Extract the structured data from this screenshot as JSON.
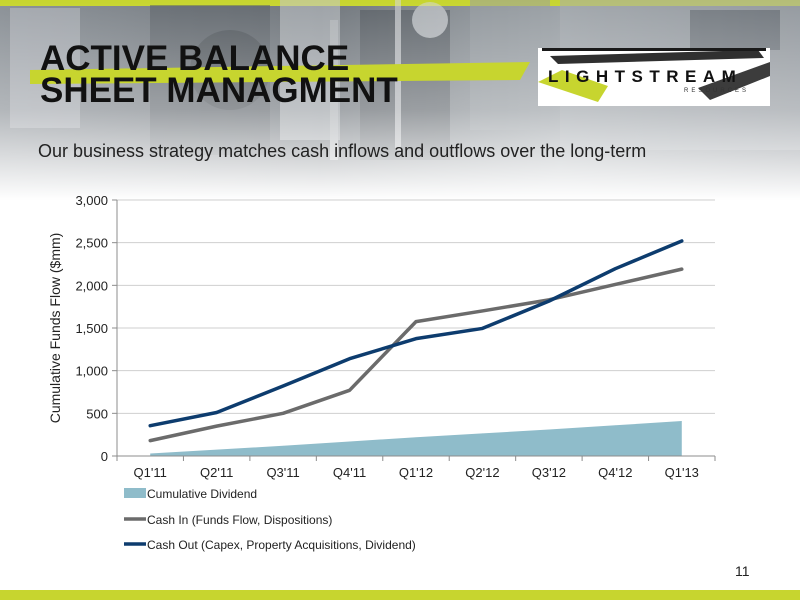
{
  "header": {
    "title_line1": "ACTIVE BALANCE",
    "title_line2": "SHEET MANAGMENT",
    "logo_main": "LIGHTSTREAM",
    "logo_sub": "RESOURCES",
    "subtitle": "Our business strategy matches cash inflows and outflows over the long-term"
  },
  "colors": {
    "accent": "#c7d52f",
    "dividend": "#8fbcca",
    "cash_in": "#6b6b6b",
    "cash_out": "#0d3c6e"
  },
  "chart_data": {
    "type": "line",
    "title": "",
    "xlabel": "",
    "ylabel": "Cumulative Funds Flow ($mm)",
    "ylim": [
      0,
      3000
    ],
    "yticks": [
      0,
      500,
      1000,
      1500,
      2000,
      2500,
      3000
    ],
    "ytick_labels": [
      "0",
      "500",
      "1,000",
      "1,500",
      "2,000",
      "2,500",
      "3,000"
    ],
    "categories": [
      "Q1'11",
      "Q2'11",
      "Q3'11",
      "Q4'11",
      "Q1'12",
      "Q2'12",
      "Q3'12",
      "Q4'12",
      "Q1'13"
    ],
    "grid": true,
    "legend_position": "bottom-left",
    "series": [
      {
        "name": "Cumulative Dividend",
        "kind": "area",
        "color": "#8fbcca",
        "values": [
          30,
          75,
          120,
          170,
          220,
          265,
          310,
          360,
          410
        ]
      },
      {
        "name": "Cash In (Funds Flow, Dispositions)",
        "kind": "line",
        "color": "#6b6b6b",
        "values": [
          180,
          350,
          500,
          770,
          1575,
          1700,
          1830,
          2010,
          2190
        ]
      },
      {
        "name": "Cash Out (Capex, Property Acquisitions, Dividend)",
        "kind": "line",
        "color": "#0d3c6e",
        "values": [
          355,
          510,
          820,
          1140,
          1375,
          1495,
          1815,
          2195,
          2520
        ]
      }
    ]
  },
  "footer": {
    "page_number": "11"
  }
}
